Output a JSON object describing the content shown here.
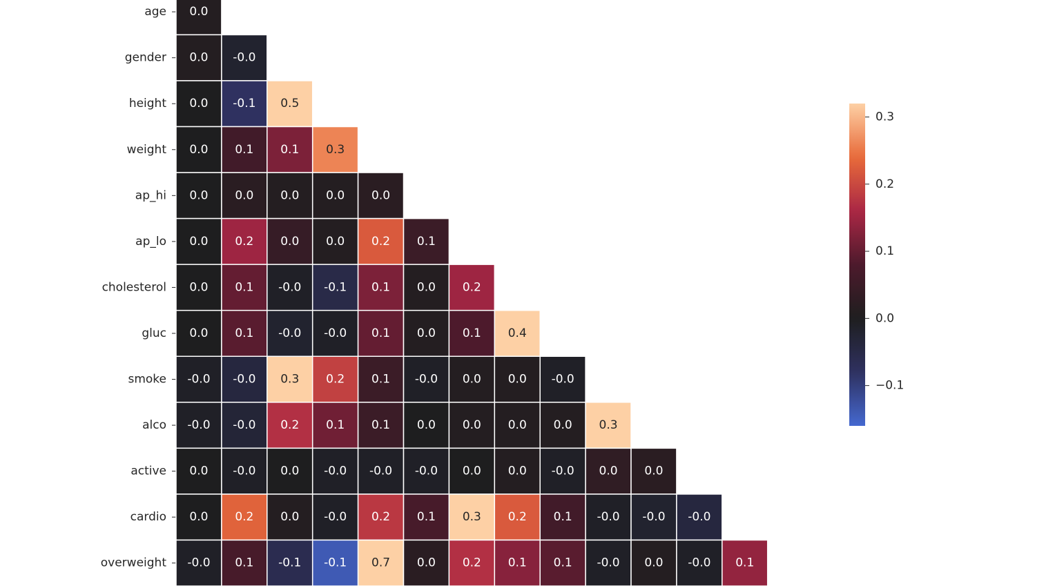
{
  "chart_data": {
    "type": "heatmap",
    "y_categories": [
      "age",
      "gender",
      "height",
      "weight",
      "ap_hi",
      "ap_lo",
      "cholesterol",
      "gluc",
      "smoke",
      "alco",
      "active",
      "cardio",
      "overweight"
    ],
    "values": [
      [
        0.01
      ],
      [
        0.01,
        -0.02
      ],
      [
        0.0,
        -0.08,
        0.5
      ],
      [
        0.0,
        0.06,
        0.12,
        0.26
      ],
      [
        0.0,
        0.02,
        0.01,
        0.01,
        0.02
      ],
      [
        0.0,
        0.15,
        0.04,
        0.01,
        0.22,
        0.05
      ],
      [
        0.0,
        0.1,
        -0.01,
        -0.05,
        0.12,
        0.01,
        0.15
      ],
      [
        0.0,
        0.09,
        -0.02,
        -0.01,
        0.1,
        0.01,
        0.08,
        0.38
      ],
      [
        -0.01,
        -0.04,
        0.33,
        0.19,
        0.05,
        -0.01,
        0.01,
        0.01,
        -0.01
      ],
      [
        -0.01,
        -0.03,
        0.17,
        0.11,
        0.05,
        0.0,
        0.01,
        0.01,
        0.01,
        0.34
      ],
      [
        0.0,
        -0.01,
        0.0,
        -0.01,
        -0.01,
        -0.01,
        0.0,
        0.01,
        -0.01,
        0.03,
        0.02
      ],
      [
        0.0,
        0.23,
        0.01,
        -0.01,
        0.18,
        0.07,
        0.32,
        0.22,
        0.06,
        -0.01,
        -0.02,
        -0.04
      ],
      [
        -0.01,
        0.07,
        -0.06,
        -0.14,
        0.66,
        0.02,
        0.17,
        0.13,
        0.09,
        -0.01,
        0.01,
        -0.01,
        0.14
      ]
    ],
    "value_labels": [
      [
        "0.0"
      ],
      [
        "0.0",
        "-0.0"
      ],
      [
        "0.0",
        "-0.1",
        "0.5"
      ],
      [
        "0.0",
        "0.1",
        "0.1",
        "0.3"
      ],
      [
        "0.0",
        "0.0",
        "0.0",
        "0.0",
        "0.0"
      ],
      [
        "0.0",
        "0.2",
        "0.0",
        "0.0",
        "0.2",
        "0.1"
      ],
      [
        "0.0",
        "0.1",
        "-0.0",
        "-0.1",
        "0.1",
        "0.0",
        "0.2"
      ],
      [
        "0.0",
        "0.1",
        "-0.0",
        "-0.0",
        "0.1",
        "0.0",
        "0.1",
        "0.4"
      ],
      [
        "-0.0",
        "-0.0",
        "0.3",
        "0.2",
        "0.1",
        "-0.0",
        "0.0",
        "0.0",
        "-0.0"
      ],
      [
        "-0.0",
        "-0.0",
        "0.2",
        "0.1",
        "0.1",
        "0.0",
        "0.0",
        "0.0",
        "0.0",
        "0.3"
      ],
      [
        "0.0",
        "-0.0",
        "0.0",
        "-0.0",
        "-0.0",
        "-0.0",
        "0.0",
        "0.0",
        "-0.0",
        "0.0",
        "0.0"
      ],
      [
        "0.0",
        "0.2",
        "0.0",
        "-0.0",
        "0.2",
        "0.1",
        "0.3",
        "0.2",
        "0.1",
        "-0.0",
        "-0.0",
        "-0.0"
      ],
      [
        "-0.0",
        "0.1",
        "-0.1",
        "-0.1",
        "0.7",
        "0.0",
        "0.2",
        "0.1",
        "0.1",
        "-0.0",
        "0.0",
        "-0.0",
        "0.1"
      ]
    ],
    "clim": [
      -0.16,
      0.32
    ],
    "center": 0,
    "colormap": [
      "#bde7db",
      "#6fb3de",
      "#4468d0",
      "#2f3160",
      "#1e1e1f",
      "#4d1a2c",
      "#aa2745",
      "#e86b3a",
      "#fdd0a5"
    ],
    "colorbar_ticks": [
      {
        "value": -0.1,
        "label": "−0.1"
      },
      {
        "value": 0,
        "label": "0.0"
      },
      {
        "value": 0.1,
        "label": "0.1"
      },
      {
        "value": 0.2,
        "label": "0.2"
      },
      {
        "value": 0.3,
        "label": "0.3"
      }
    ]
  }
}
